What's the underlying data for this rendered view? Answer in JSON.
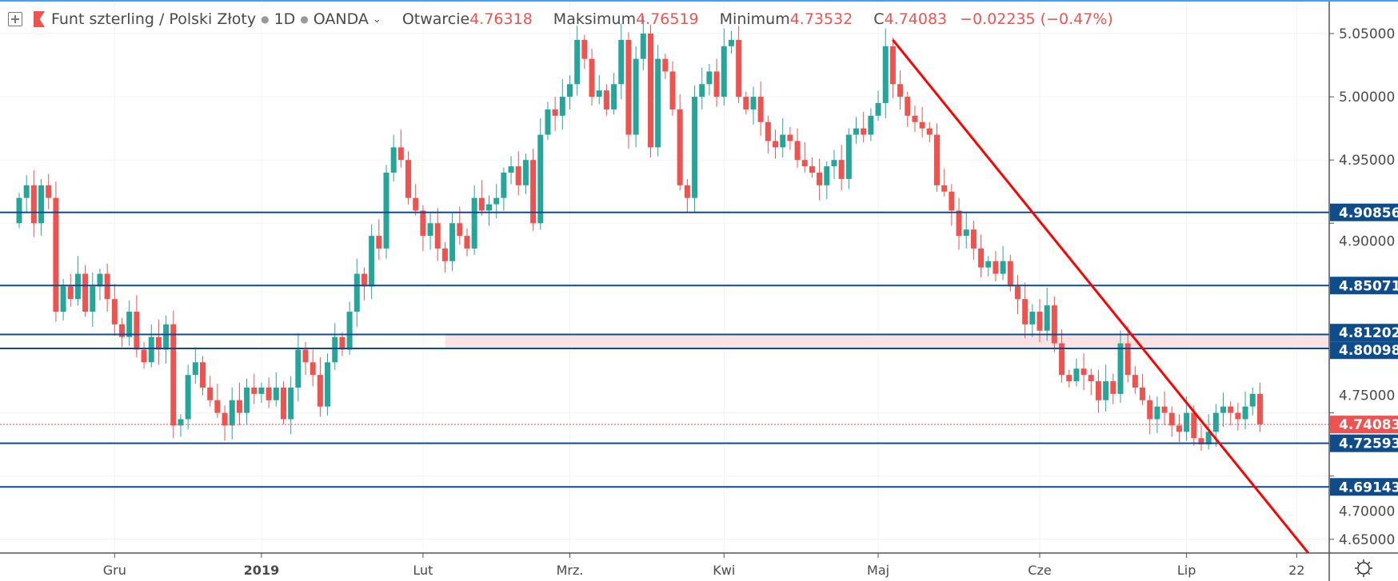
{
  "header": {
    "symbol": "Funt szterling / Polski Złoty",
    "interval": "1D",
    "exchange": "OANDA",
    "open_label": "Otwarcie",
    "open": "4.76318",
    "high_label": "Maksimum",
    "high": "4.76519",
    "low_label": "Minimum",
    "low": "4.73532",
    "close_label": "C",
    "close": "4.74083",
    "change": "−0.02235 (−0.47%)"
  },
  "colors": {
    "up": "#26a69a",
    "down": "#ef5350",
    "level": "#0f4c8c",
    "trend": "#ff0000",
    "zone": "#f9e3e4",
    "grid": "#eef3f8"
  },
  "chart_data": {
    "type": "candlestick",
    "title": "Funt szterling / Polski Złoty · 1D · OANDA",
    "ylim": [
      4.639,
      5.077
    ],
    "y_ticks": [
      "5.05000",
      "5.00000",
      "4.95000",
      "4.90000",
      "4.75000",
      "4.70000",
      "4.65000"
    ],
    "y_tick_values": [
      5.05,
      5.0,
      4.95,
      4.9,
      4.75,
      4.7,
      4.65
    ],
    "x_ticks": [
      {
        "label": "Gru",
        "index": 13
      },
      {
        "label": "2019",
        "index": 33
      },
      {
        "label": "Lut",
        "index": 55
      },
      {
        "label": "Mrz.",
        "index": 75
      },
      {
        "label": "Kwi",
        "index": 96
      },
      {
        "label": "Maj",
        "index": 117
      },
      {
        "label": "Cze",
        "index": 139
      },
      {
        "label": "Lip",
        "index": 159
      },
      {
        "label": "22",
        "index": 174
      }
    ],
    "closes": [
      4.92,
      4.93,
      4.9,
      4.93,
      4.92,
      4.83,
      4.85,
      4.84,
      4.86,
      4.83,
      4.85,
      4.86,
      4.84,
      4.82,
      4.81,
      4.83,
      4.8,
      4.79,
      4.81,
      4.8,
      4.82,
      4.74,
      4.745,
      4.78,
      4.79,
      4.77,
      4.76,
      4.75,
      4.74,
      4.76,
      4.75,
      4.77,
      4.765,
      4.77,
      4.76,
      4.77,
      4.745,
      4.77,
      4.8,
      4.79,
      4.78,
      4.755,
      4.79,
      4.81,
      4.8,
      4.83,
      4.86,
      4.85,
      4.89,
      4.88,
      4.94,
      4.96,
      4.95,
      4.92,
      4.91,
      4.89,
      4.9,
      4.88,
      4.87,
      4.9,
      4.89,
      4.88,
      4.92,
      4.91,
      4.915,
      4.92,
      4.94,
      4.945,
      4.93,
      4.95,
      4.9,
      4.97,
      4.99,
      4.985,
      5.0,
      5.01,
      5.045,
      5.03,
      5.0,
      5.005,
      4.99,
      5.01,
      5.045,
      4.97,
      5.03,
      5.05,
      4.96,
      5.03,
      5.02,
      4.99,
      4.93,
      4.92,
      5.0,
      5.01,
      5.02,
      5.0,
      5.04,
      5.045,
      5.0,
      4.99,
      5.0,
      4.98,
      4.965,
      4.96,
      4.97,
      4.965,
      4.95,
      4.945,
      4.94,
      4.93,
      4.945,
      4.95,
      4.935,
      4.97,
      4.975,
      4.97,
      4.985,
      4.995,
      5.04,
      5.01,
      5.0,
      4.985,
      4.98,
      4.975,
      4.97,
      4.93,
      4.925,
      4.91,
      4.89,
      4.895,
      4.88,
      4.865,
      4.87,
      4.86,
      4.87,
      4.85,
      4.84,
      4.82,
      4.83,
      4.815,
      4.835,
      4.805,
      4.78,
      4.775,
      4.785,
      4.78,
      4.775,
      4.76,
      4.775,
      4.765,
      4.805,
      4.78,
      4.77,
      4.76,
      4.745,
      4.755,
      4.75,
      4.74,
      4.735,
      4.75,
      4.73,
      4.725,
      4.735,
      4.75,
      4.755,
      4.75,
      4.745,
      4.755,
      4.765,
      4.741
    ],
    "first_open": 4.9,
    "levels": [
      {
        "value": 4.90856,
        "label": "4.90856"
      },
      {
        "value": 4.85071,
        "label": "4.85071"
      },
      {
        "value": 4.81202,
        "label": "4.81202"
      },
      {
        "value": 4.80098,
        "label": "4.80098"
      },
      {
        "value": 4.72593,
        "label": "4.72593"
      },
      {
        "value": 4.69143,
        "label": "4.69143"
      }
    ],
    "current_price": {
      "value": 4.74083,
      "label": "4.74083"
    },
    "zone": {
      "from": 4.80098,
      "to": 4.81202,
      "start_index": 58
    },
    "trendline": [
      {
        "index": 119,
        "price": 5.045
      },
      {
        "index": 175.6,
        "price": 4.639
      }
    ]
  }
}
